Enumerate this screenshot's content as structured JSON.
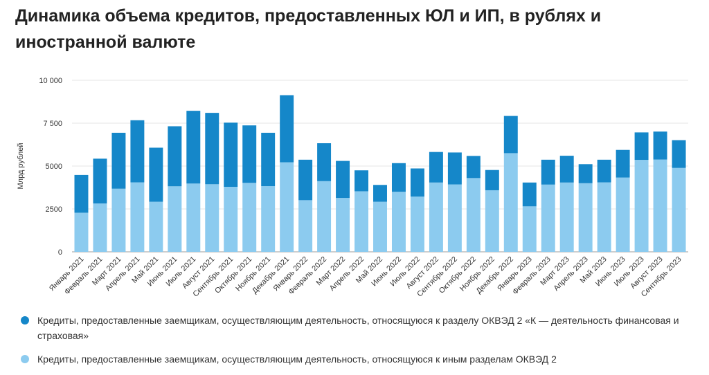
{
  "title": "Динамика объема кредитов, предоставленных ЮЛ и ИП, в рублях и иностранной валюте",
  "colors": {
    "series_finance": "#1587c9",
    "series_other": "#8ccbef",
    "grid": "#e4e4e4",
    "axis": "#9e9e9e"
  },
  "chart_data": {
    "type": "bar",
    "stacked": true,
    "ylabel": "Млрд рублей",
    "ylim": [
      0,
      10000
    ],
    "yticks": [
      0,
      2500,
      5000,
      7500,
      10000
    ],
    "ytick_labels": [
      "0",
      "2500",
      "5000",
      "7 500",
      "10 000"
    ],
    "grid": true,
    "legend_position": "bottom",
    "categories": [
      "Январь 2021",
      "Февраль 2021",
      "Март 2021",
      "Апрель 2021",
      "Май 2021",
      "Июнь 2021",
      "Июль 2021",
      "Август 2021",
      "Сентябрь 2021",
      "Октябрь 2021",
      "Ноябрь 2021",
      "Декабрь 2021",
      "Январь 2022",
      "Февраль 2022",
      "Март 2022",
      "Апрель 2022",
      "Май 2022",
      "Июнь 2022",
      "Июль 2022",
      "Август 2022",
      "Сентябрь 2022",
      "Октябрь 2022",
      "Ноябрь 2022",
      "Декабрь 2022",
      "Январь 2023",
      "Февраль 2023",
      "Март 2023",
      "Апрель 2023",
      "Май 2023",
      "Июнь 2023",
      "Июль 2023",
      "Август 2023",
      "Сентябрь 2023"
    ],
    "series": [
      {
        "name": "Кредиты, предоставленные заемщикам, осуществляющим деятельность, относящуюся к иным разделам ОКВЭД 2",
        "values": [
          2280,
          2820,
          3680,
          4050,
          2920,
          3820,
          3980,
          3940,
          3790,
          4020,
          3830,
          5220,
          3010,
          4120,
          3140,
          3530,
          2920,
          3500,
          3220,
          4040,
          3930,
          4300,
          3590,
          5750,
          2650,
          3920,
          4040,
          4000,
          4050,
          4330,
          5360,
          5380,
          4890
        ]
      },
      {
        "name": "Кредиты, предоставленные заемщикам, осуществляющим деятельность, относящуюся к разделу ОКВЭД 2 «К — деятельность финансовая и страховая»",
        "values": [
          2200,
          2610,
          3260,
          3620,
          3150,
          3500,
          4240,
          4160,
          3740,
          3350,
          3110,
          3910,
          2360,
          2210,
          2160,
          1220,
          980,
          1670,
          1640,
          1780,
          1860,
          1290,
          1180,
          2170,
          1390,
          1450,
          1560,
          1110,
          1320,
          1610,
          1600,
          1630,
          1620
        ]
      }
    ]
  },
  "legend": {
    "item_finance": "Кредиты, предоставленные заемщикам, осуществляющим деятельность, относящуюся к разделу ОКВЭД 2 «К — деятельность финансовая и страховая»",
    "item_other": "Кредиты, предоставленные заемщикам, осуществляющим деятельность, относящуюся к иным разделам ОКВЭД 2"
  }
}
